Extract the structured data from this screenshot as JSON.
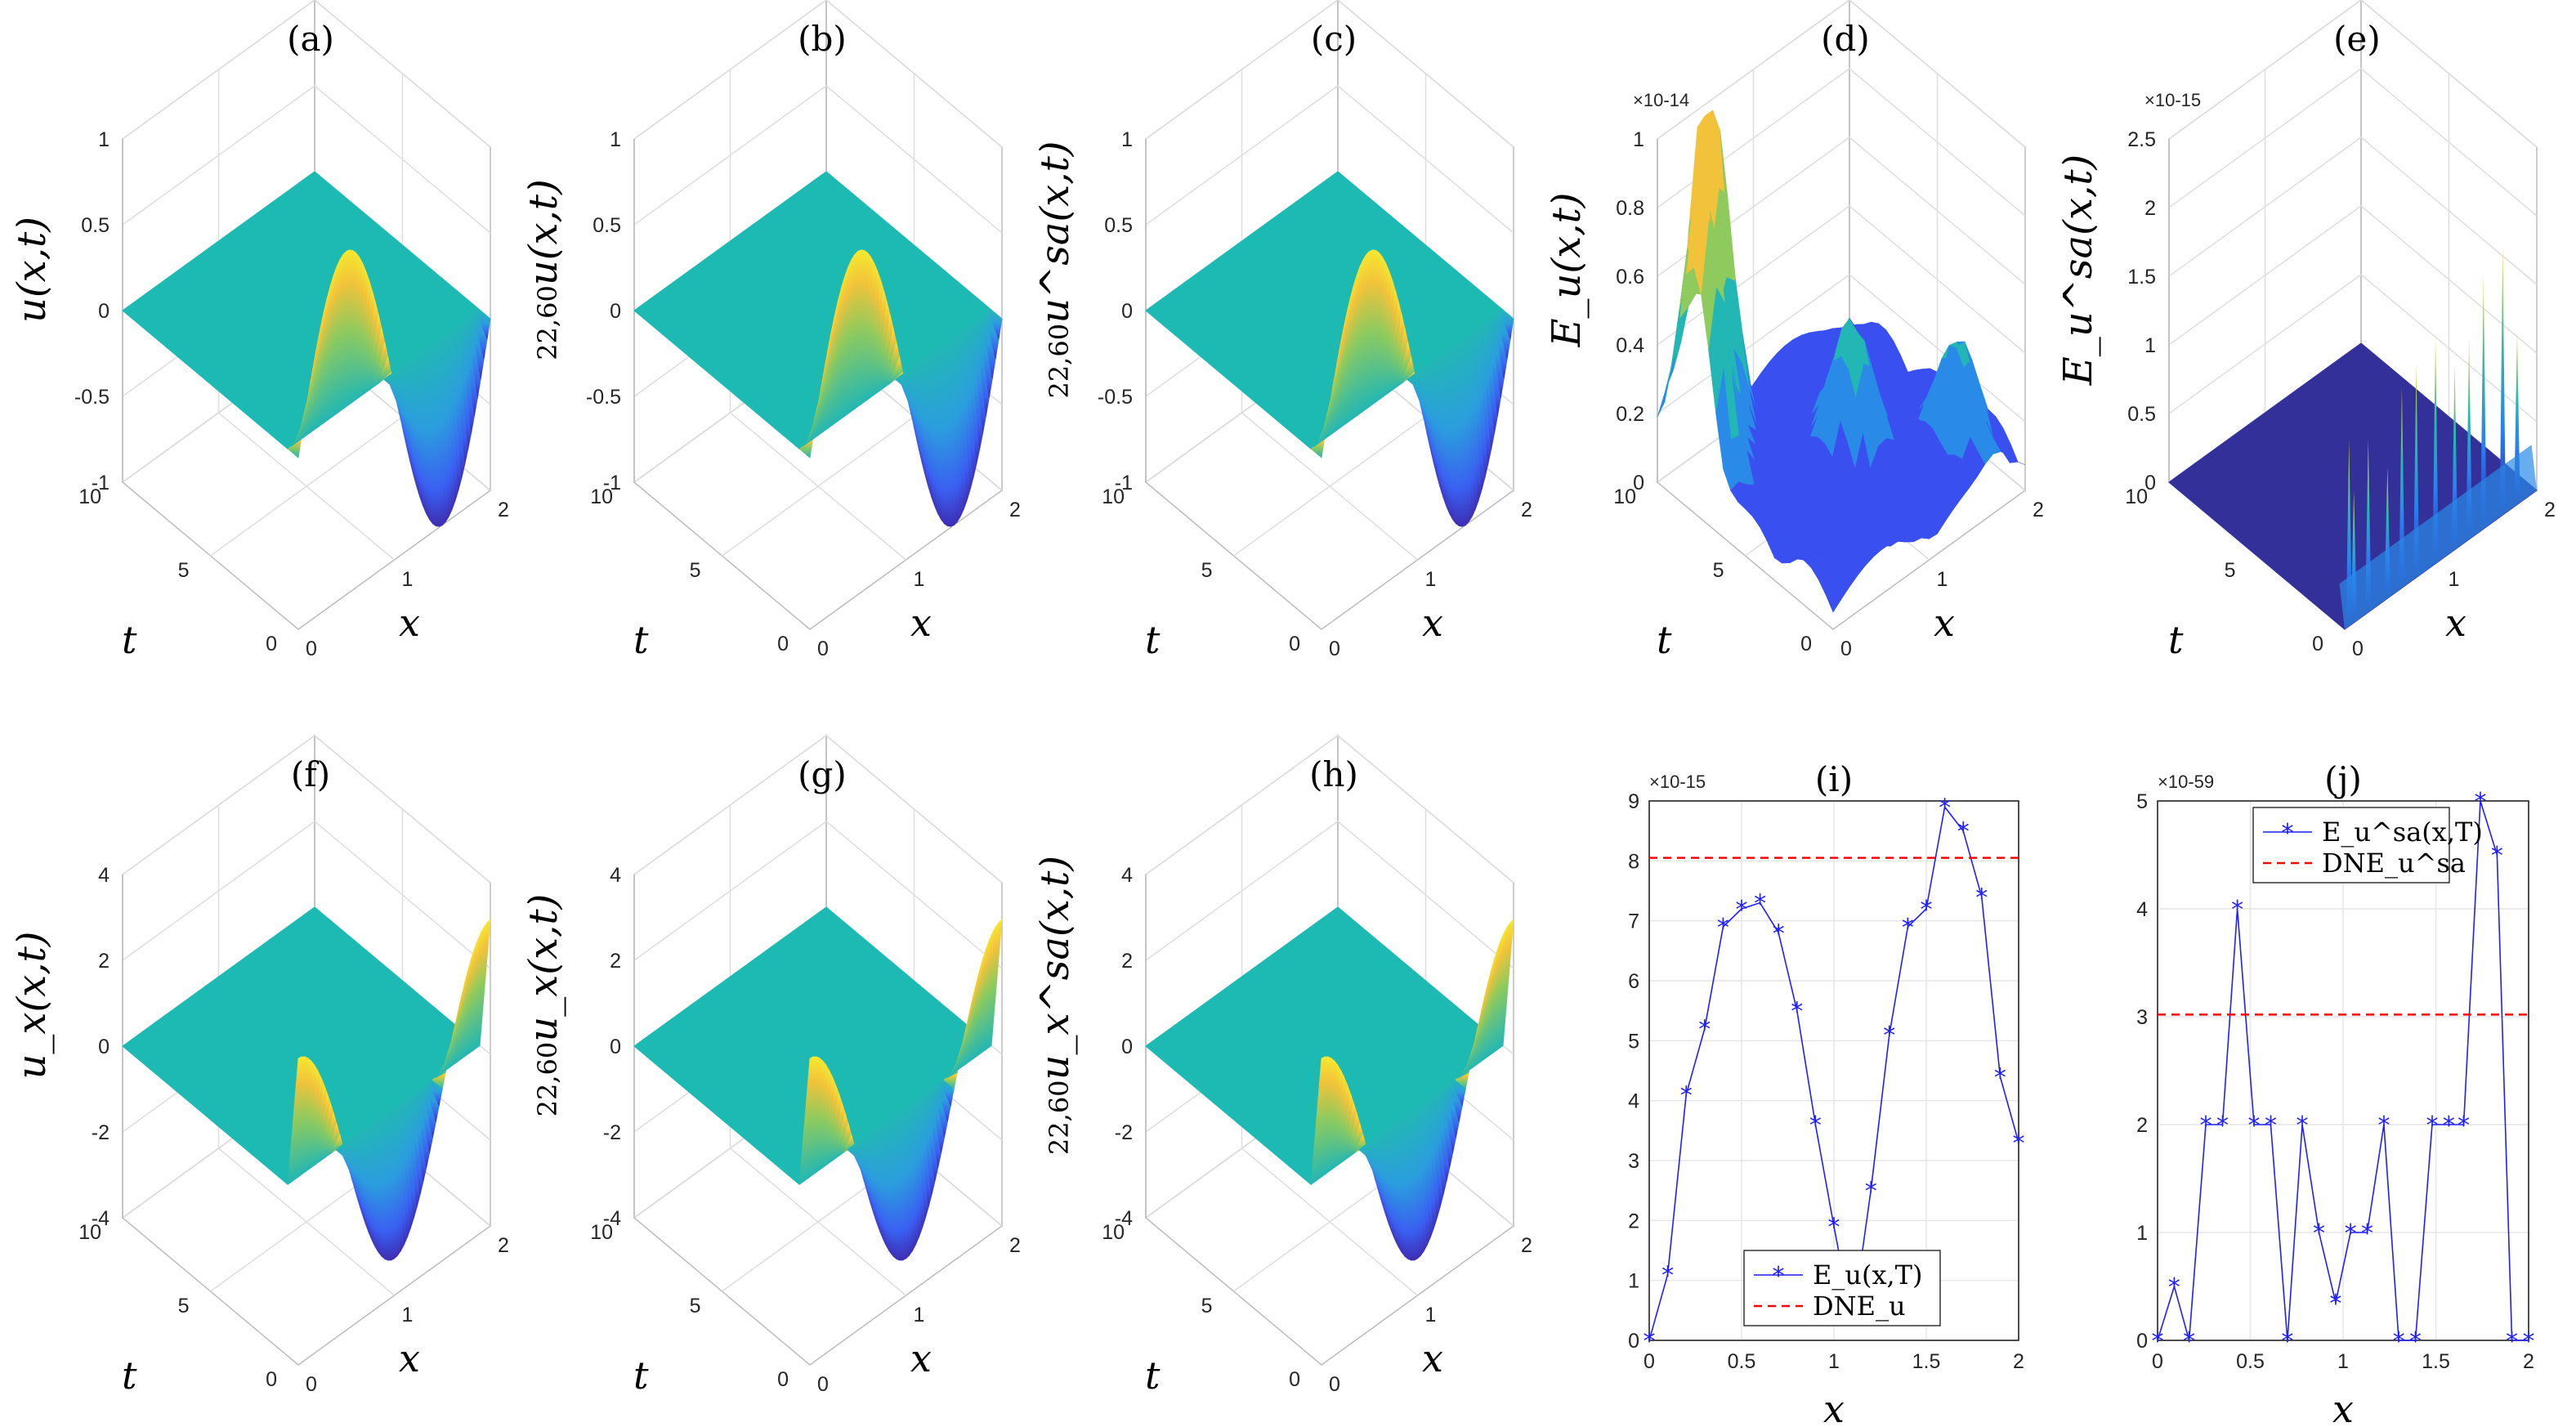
{
  "chart_data": [
    {
      "id": "a",
      "type": "surface",
      "title": "(a)",
      "zlabel": "u(x,t)",
      "zprefix": "",
      "xlabel": "x",
      "ylabel": "t",
      "xlim": [
        0,
        2
      ],
      "ylim": [
        0,
        10
      ],
      "zlim": [
        -1,
        1
      ],
      "xticks": [
        "0",
        "1",
        "2"
      ],
      "yticks": [
        "0",
        "5",
        "10"
      ],
      "zticks": [
        "-1",
        "-0.5",
        "0",
        "0.5",
        "1"
      ],
      "surface": "u = sin(pi x) near t = 0, zero elsewhere",
      "sample_profile_t0": {
        "x": [
          0,
          0.5,
          1,
          1.5,
          2
        ],
        "z": [
          0,
          1,
          0,
          -1,
          0
        ]
      }
    },
    {
      "id": "b",
      "type": "surface",
      "title": "(b)",
      "zlabel": "u(x,t)",
      "zprefix": "22,60",
      "xlabel": "x",
      "ylabel": "t",
      "xlim": [
        0,
        2
      ],
      "ylim": [
        0,
        10
      ],
      "zlim": [
        -1,
        1
      ],
      "xticks": [
        "0",
        "1",
        "2"
      ],
      "yticks": [
        "0",
        "5",
        "10"
      ],
      "zticks": [
        "-1",
        "-0.5",
        "0",
        "0.5",
        "1"
      ],
      "sample_profile_t0": {
        "x": [
          0,
          0.5,
          1,
          1.5,
          2
        ],
        "z": [
          0,
          1,
          0,
          -1,
          0
        ]
      }
    },
    {
      "id": "c",
      "type": "surface",
      "title": "(c)",
      "zlabel": "u^sa(x,t)",
      "zprefix": "22,60",
      "xlabel": "x",
      "ylabel": "t",
      "xlim": [
        0,
        2
      ],
      "ylim": [
        0,
        10
      ],
      "zlim": [
        -1,
        1
      ],
      "xticks": [
        "0",
        "1",
        "2"
      ],
      "yticks": [
        "0",
        "5",
        "10"
      ],
      "zticks": [
        "-1",
        "-0.5",
        "0",
        "0.5",
        "1"
      ],
      "sample_profile_t0": {
        "x": [
          0,
          0.5,
          1,
          1.5,
          2
        ],
        "z": [
          0,
          1,
          0,
          -1,
          0
        ]
      }
    },
    {
      "id": "d",
      "type": "surface",
      "title": "(d)",
      "zlabel": "E_u(x,t)",
      "zprefix": "",
      "multiplier": "×10-14",
      "xlabel": "x",
      "ylabel": "t",
      "xlim": [
        0,
        2
      ],
      "ylim": [
        0,
        10
      ],
      "zlim": [
        0,
        1
      ],
      "xticks": [
        "0",
        "1",
        "2"
      ],
      "yticks": [
        "0",
        "5",
        "10"
      ],
      "zticks": [
        "0",
        "0.2",
        "0.4",
        "0.6",
        "0.8",
        "1"
      ],
      "peaks": [
        {
          "x": 0.45,
          "t": 9.5,
          "z": 0.95
        },
        {
          "x": 0.1,
          "t": 8.0,
          "z": 0.82
        },
        {
          "x": 1.1,
          "t": 5.0,
          "z": 0.35
        },
        {
          "x": 1.7,
          "t": 2.0,
          "z": 0.3
        }
      ]
    },
    {
      "id": "e",
      "type": "surface",
      "title": "(e)",
      "zlabel": "E_u^sa(x,t)",
      "zprefix": "",
      "multiplier": "×10-15",
      "xlabel": "x",
      "ylabel": "t",
      "xlim": [
        0,
        2
      ],
      "ylim": [
        0,
        10
      ],
      "zlim": [
        0,
        2.5
      ],
      "xticks": [
        "0",
        "1",
        "2"
      ],
      "yticks": [
        "0",
        "5",
        "10"
      ],
      "zticks": [
        "0",
        "0.5",
        "1",
        "1.5",
        "2",
        "2.5"
      ],
      "spikes_at_t0": {
        "x": [
          0.1,
          0.15,
          0.3,
          0.5,
          0.65,
          0.8,
          1.0,
          1.2,
          1.35,
          1.5,
          1.7,
          1.85
        ],
        "z": [
          1.3,
          0.9,
          1.2,
          0.9,
          1.4,
          1.5,
          1.6,
          1.3,
          1.4,
          1.8,
          1.9,
          1.2
        ]
      }
    },
    {
      "id": "f",
      "type": "surface",
      "title": "(f)",
      "zlabel": "u_x(x,t)",
      "zprefix": "",
      "xlabel": "x",
      "ylabel": "t",
      "xlim": [
        0,
        2
      ],
      "ylim": [
        0,
        10
      ],
      "zlim": [
        -4,
        4
      ],
      "xticks": [
        "0",
        "1",
        "2"
      ],
      "yticks": [
        "0",
        "5",
        "10"
      ],
      "zticks": [
        "-4",
        "-2",
        "0",
        "2",
        "4"
      ],
      "sample_profile_t0": {
        "x": [
          0,
          0.5,
          1,
          1.5,
          2
        ],
        "z": [
          3.14,
          0,
          -3.14,
          0,
          3.14
        ]
      }
    },
    {
      "id": "g",
      "type": "surface",
      "title": "(g)",
      "zlabel": "u_x(x,t)",
      "zprefix": "22,60",
      "xlabel": "x",
      "ylabel": "t",
      "xlim": [
        0,
        2
      ],
      "ylim": [
        0,
        10
      ],
      "zlim": [
        -4,
        4
      ],
      "xticks": [
        "0",
        "1",
        "2"
      ],
      "yticks": [
        "0",
        "5",
        "10"
      ],
      "zticks": [
        "-4",
        "-2",
        "0",
        "2",
        "4"
      ],
      "sample_profile_t0": {
        "x": [
          0,
          0.5,
          1,
          1.5,
          2
        ],
        "z": [
          3.14,
          0,
          -3.14,
          0,
          3.14
        ]
      }
    },
    {
      "id": "h",
      "type": "surface",
      "title": "(h)",
      "zlabel": "u_x^sa(x,t)",
      "zprefix": "22,60",
      "xlabel": "x",
      "ylabel": "t",
      "xlim": [
        0,
        2
      ],
      "ylim": [
        0,
        10
      ],
      "zlim": [
        -4,
        4
      ],
      "xticks": [
        "0",
        "1",
        "2"
      ],
      "yticks": [
        "0",
        "5",
        "10"
      ],
      "zticks": [
        "-4",
        "-2",
        "0",
        "2",
        "4"
      ],
      "sample_profile_t0": {
        "x": [
          0,
          0.5,
          1,
          1.5,
          2
        ],
        "z": [
          3.14,
          0,
          -3.14,
          0,
          3.14
        ]
      }
    },
    {
      "id": "i",
      "type": "line",
      "title": "(i)",
      "xlabel": "x",
      "ylabel": "",
      "multiplier": "×10-15",
      "xlim": [
        0,
        2
      ],
      "ylim": [
        0,
        9
      ],
      "xticks": [
        "0",
        "0.5",
        "1",
        "1.5",
        "2"
      ],
      "yticks": [
        "0",
        "1",
        "2",
        "3",
        "4",
        "5",
        "6",
        "7",
        "8",
        "9"
      ],
      "grid": true,
      "legend_position": "bottom-center",
      "series": [
        {
          "name": "E_u(x,T)",
          "style": "line-star",
          "color": "#1f1fff",
          "x": [
            0,
            0.1,
            0.2,
            0.3,
            0.4,
            0.5,
            0.6,
            0.7,
            0.8,
            0.9,
            1.0,
            1.1,
            1.2,
            1.3,
            1.4,
            1.5,
            1.6,
            1.7,
            1.8,
            1.9,
            2.0
          ],
          "y": [
            0,
            1.1,
            4.1,
            5.2,
            6.9,
            7.2,
            7.3,
            6.8,
            5.5,
            3.6,
            1.9,
            0.3,
            2.5,
            5.1,
            6.9,
            7.2,
            8.9,
            8.5,
            7.4,
            4.4,
            3.3
          ]
        },
        {
          "name": "DNE_u",
          "style": "dashed",
          "color": "#ff0000",
          "y_const": 8.05
        }
      ]
    },
    {
      "id": "j",
      "type": "line",
      "title": "(j)",
      "xlabel": "x",
      "ylabel": "",
      "multiplier": "×10-59",
      "xlim": [
        0,
        2
      ],
      "ylim": [
        0,
        5
      ],
      "xticks": [
        "0",
        "0.5",
        "1",
        "1.5",
        "2"
      ],
      "yticks": [
        "0",
        "1",
        "2",
        "3",
        "4",
        "5"
      ],
      "grid": true,
      "legend_position": "top-center",
      "series": [
        {
          "name": "E_u^sa(x,T)",
          "style": "line-star",
          "color": "#1f1fff",
          "x": [
            0,
            0.09,
            0.17,
            0.26,
            0.35,
            0.43,
            0.52,
            0.61,
            0.7,
            0.78,
            0.87,
            0.96,
            1.04,
            1.13,
            1.22,
            1.3,
            1.39,
            1.48,
            1.57,
            1.65,
            1.74,
            1.83,
            1.91,
            2.0
          ],
          "y": [
            0,
            0.5,
            0,
            2,
            2,
            4,
            2,
            2,
            0,
            2,
            1,
            0.35,
            1,
            1,
            2,
            0,
            0,
            2,
            2,
            2,
            5,
            4.5,
            0,
            0
          ]
        },
        {
          "name": "DNE_u^sa",
          "style": "dashed",
          "color": "#ff0000",
          "y_const": 3.02
        }
      ]
    }
  ]
}
